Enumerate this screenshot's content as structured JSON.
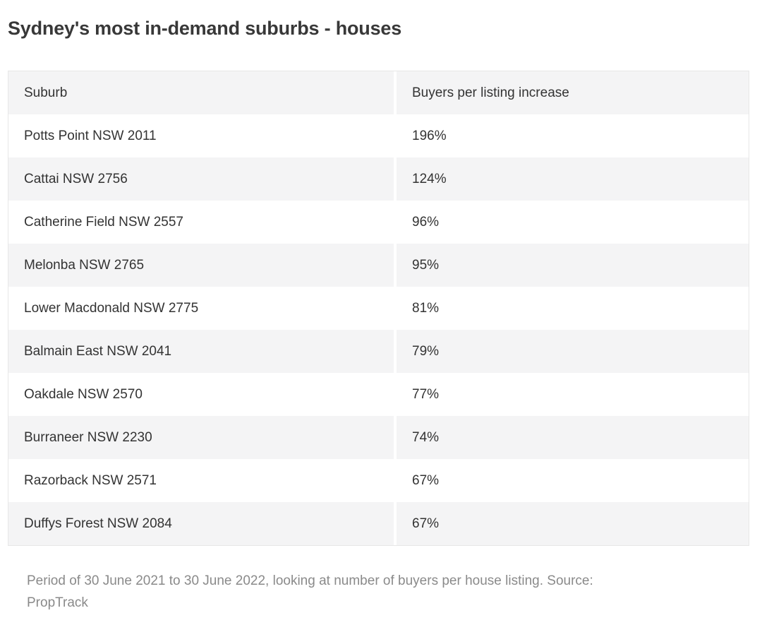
{
  "title": "Sydney's most in-demand suburbs - houses",
  "table": {
    "columns": [
      "Suburb",
      "Buyers per listing increase"
    ],
    "rows": [
      {
        "suburb": "Potts Point NSW 2011",
        "increase": "196%"
      },
      {
        "suburb": "Cattai NSW 2756",
        "increase": "124%"
      },
      {
        "suburb": "Catherine Field NSW 2557",
        "increase": "96%"
      },
      {
        "suburb": "Melonba NSW 2765",
        "increase": "95%"
      },
      {
        "suburb": "Lower Macdonald NSW 2775",
        "increase": "81%"
      },
      {
        "suburb": "Balmain East NSW 2041",
        "increase": "79%"
      },
      {
        "suburb": "Oakdale NSW 2570",
        "increase": "77%"
      },
      {
        "suburb": "Burraneer NSW 2230",
        "increase": "74%"
      },
      {
        "suburb": "Razorback NSW 2571",
        "increase": "67%"
      },
      {
        "suburb": "Duffys Forest NSW 2084",
        "increase": "67%"
      }
    ]
  },
  "footer": {
    "note_lines": [
      "Period of 30 June 2021 to 30 June 2022, looking at number of buyers per house listing. Source:",
      "PropTrack"
    ]
  },
  "colors": {
    "page_bg": "#ffffff",
    "title_color": "#383838",
    "cell_text_color": "#333333",
    "row_bg": "#ffffff",
    "row_alt_bg": "#f4f4f5",
    "gap_color": "#ffffff",
    "border_color": "#e7e7e7",
    "note_color": "#8a8a8a"
  },
  "chart_data": {
    "type": "table",
    "title": "Sydney's most in-demand suburbs - houses",
    "columns": [
      "Suburb",
      "Buyers per listing increase"
    ],
    "categories": [
      "Potts Point NSW 2011",
      "Cattai NSW 2756",
      "Catherine Field NSW 2557",
      "Melonba NSW 2765",
      "Lower Macdonald NSW 2775",
      "Balmain East NSW 2041",
      "Oakdale NSW 2570",
      "Burraneer NSW 2230",
      "Razorback NSW 2571",
      "Duffys Forest NSW 2084"
    ],
    "values": [
      196,
      124,
      96,
      95,
      81,
      79,
      77,
      74,
      67,
      67
    ],
    "value_unit": "percent",
    "note": "Period of 30 June 2021 to 30 June 2022, looking at number of buyers per house listing. Source: PropTrack"
  }
}
